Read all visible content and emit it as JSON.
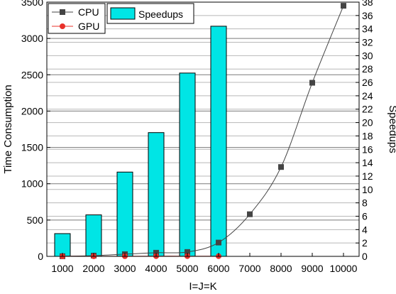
{
  "chart_data": {
    "type": "bar+line",
    "categories": [
      "1000",
      "2000",
      "3000",
      "4000",
      "5000",
      "6000",
      "7000",
      "8000",
      "9000",
      "10000"
    ],
    "xlabel": "I=J=K",
    "ylabel_left": "Time Consumption",
    "ylabel_right": "Speedups",
    "ylim_left": [
      0,
      3500
    ],
    "ylim_right": [
      0,
      38
    ],
    "yticks_left": [
      0,
      500,
      1000,
      1500,
      2000,
      2500,
      3000,
      3500
    ],
    "yticks_right": [
      0,
      2,
      4,
      6,
      8,
      10,
      12,
      14,
      16,
      18,
      20,
      22,
      24,
      26,
      28,
      30,
      32,
      34,
      36,
      38
    ],
    "grid": true,
    "legend_position": "top-left",
    "series": [
      {
        "name": "CPU",
        "kind": "line",
        "axis": "left",
        "color": "#444444",
        "marker": "square",
        "values": [
          2,
          10,
          30,
          50,
          60,
          190,
          580,
          1230,
          2390,
          3450
        ]
      },
      {
        "name": "GPU",
        "kind": "line",
        "axis": "left",
        "color": "#e8302a",
        "marker": "circle",
        "values": [
          1,
          1,
          2,
          3,
          3,
          3,
          null,
          null,
          null,
          null
        ]
      },
      {
        "name": "Speedups",
        "kind": "bar",
        "axis": "right",
        "color": "#00e5e5",
        "values": [
          3.4,
          6.2,
          12.6,
          18.5,
          27.4,
          34.4,
          null,
          null,
          null,
          null
        ]
      }
    ]
  }
}
